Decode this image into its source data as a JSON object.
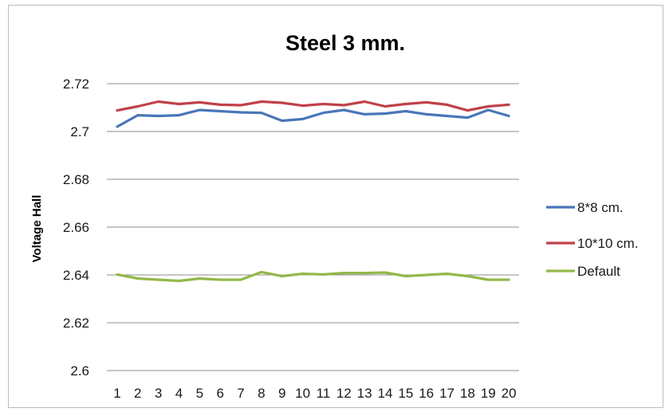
{
  "chart_data": {
    "type": "line",
    "title": "Steel 3 mm.",
    "xlabel": "",
    "ylabel": "Voltage Hall",
    "categories": [
      "1",
      "2",
      "3",
      "4",
      "5",
      "6",
      "7",
      "8",
      "9",
      "10",
      "11",
      "12",
      "13",
      "14",
      "15",
      "16",
      "17",
      "18",
      "19",
      "20"
    ],
    "ylim": [
      2.6,
      2.72
    ],
    "yticks": [
      "2.72",
      "2.7",
      "2.68",
      "2.66",
      "2.64",
      "2.62",
      "2.6"
    ],
    "grid": "horizontal",
    "legend_position": "right",
    "series": [
      {
        "name": "8*8 cm.",
        "color": "#4a76b8",
        "values": [
          2.702,
          2.7068,
          2.7065,
          2.7068,
          2.709,
          2.7085,
          2.708,
          2.7078,
          2.7045,
          2.7052,
          2.7078,
          2.709,
          2.7072,
          2.7075,
          2.7085,
          2.7072,
          2.7065,
          2.7058,
          2.709,
          2.7065
        ]
      },
      {
        "name": "10*10 cm.",
        "color": "#c0414a",
        "values": [
          2.7088,
          2.7105,
          2.7125,
          2.7115,
          2.7122,
          2.7112,
          2.711,
          2.7125,
          2.712,
          2.7108,
          2.7115,
          2.711,
          2.7125,
          2.7105,
          2.7115,
          2.7122,
          2.7112,
          2.7088,
          2.7105,
          2.7112
        ]
      },
      {
        "name": "Default",
        "color": "#93b84a",
        "values": [
          2.6402,
          2.6385,
          2.638,
          2.6375,
          2.6385,
          2.638,
          2.638,
          2.6412,
          2.6395,
          2.6405,
          2.6402,
          2.6408,
          2.6408,
          2.641,
          2.6395,
          2.64,
          2.6405,
          2.6395,
          2.638,
          2.638
        ]
      }
    ]
  }
}
